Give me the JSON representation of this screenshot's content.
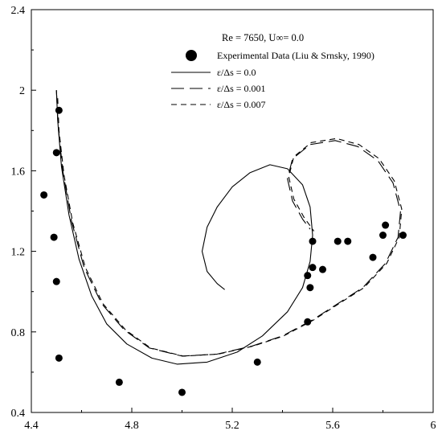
{
  "chart_data": {
    "type": "scatter",
    "title": "Re = 7650, U∞= 0.0",
    "xlabel": "",
    "ylabel": "",
    "xlim": [
      4.4,
      6.0
    ],
    "ylim": [
      0.4,
      2.4
    ],
    "xticks": [
      "4.4",
      "4.8",
      "5.2",
      "5.6",
      "6"
    ],
    "yticks": [
      "0.4",
      "0.8",
      "1.2",
      "1.6",
      "2",
      "2.4"
    ],
    "grid": false,
    "legend_position": "top-right",
    "series": [
      {
        "name": "Experimental Data (Liu & Srnsky, 1990)",
        "kind": "scatter",
        "color": "#000000",
        "points": [
          [
            4.51,
            1.9
          ],
          [
            4.5,
            1.69
          ],
          [
            4.45,
            1.48
          ],
          [
            4.49,
            1.27
          ],
          [
            4.5,
            1.05
          ],
          [
            4.51,
            0.67
          ],
          [
            4.75,
            0.55
          ],
          [
            5.0,
            0.5
          ],
          [
            5.3,
            0.65
          ],
          [
            5.5,
            0.85
          ],
          [
            5.5,
            1.08
          ],
          [
            5.51,
            1.02
          ],
          [
            5.52,
            1.12
          ],
          [
            5.56,
            1.11
          ],
          [
            5.52,
            1.25
          ],
          [
            5.62,
            1.25
          ],
          [
            5.66,
            1.25
          ],
          [
            5.76,
            1.17
          ],
          [
            5.8,
            1.28
          ],
          [
            5.81,
            1.33
          ],
          [
            5.88,
            1.28
          ]
        ]
      },
      {
        "name": "ε/Δs = 0.0",
        "kind": "line",
        "dash": "solid",
        "points": [
          [
            4.5,
            2.0
          ],
          [
            4.505,
            1.85
          ],
          [
            4.52,
            1.62
          ],
          [
            4.55,
            1.38
          ],
          [
            4.59,
            1.16
          ],
          [
            4.64,
            0.98
          ],
          [
            4.7,
            0.84
          ],
          [
            4.78,
            0.74
          ],
          [
            4.88,
            0.67
          ],
          [
            4.98,
            0.64
          ],
          [
            5.1,
            0.65
          ],
          [
            5.22,
            0.7
          ],
          [
            5.32,
            0.78
          ],
          [
            5.42,
            0.9
          ],
          [
            5.48,
            1.02
          ],
          [
            5.51,
            1.15
          ],
          [
            5.52,
            1.28
          ],
          [
            5.51,
            1.42
          ],
          [
            5.48,
            1.53
          ],
          [
            5.42,
            1.61
          ],
          [
            5.35,
            1.63
          ],
          [
            5.27,
            1.59
          ],
          [
            5.2,
            1.52
          ],
          [
            5.14,
            1.42
          ],
          [
            5.1,
            1.32
          ],
          [
            5.08,
            1.2
          ],
          [
            5.1,
            1.1
          ],
          [
            5.14,
            1.04
          ],
          [
            5.17,
            1.01
          ]
        ]
      },
      {
        "name": "ε/Δs = 0.001",
        "kind": "line",
        "dash": "long",
        "points": [
          [
            4.5,
            2.0
          ],
          [
            4.507,
            1.82
          ],
          [
            4.525,
            1.6
          ],
          [
            4.56,
            1.35
          ],
          [
            4.61,
            1.12
          ],
          [
            4.68,
            0.94
          ],
          [
            4.77,
            0.81
          ],
          [
            4.87,
            0.72
          ],
          [
            5.0,
            0.68
          ],
          [
            5.14,
            0.69
          ],
          [
            5.28,
            0.73
          ],
          [
            5.4,
            0.78
          ],
          [
            5.52,
            0.86
          ],
          [
            5.62,
            0.94
          ],
          [
            5.72,
            1.02
          ],
          [
            5.81,
            1.14
          ],
          [
            5.86,
            1.27
          ],
          [
            5.87,
            1.4
          ],
          [
            5.84,
            1.54
          ],
          [
            5.78,
            1.65
          ],
          [
            5.7,
            1.72
          ],
          [
            5.61,
            1.75
          ],
          [
            5.51,
            1.73
          ],
          [
            5.44,
            1.66
          ],
          [
            5.42,
            1.56
          ],
          [
            5.44,
            1.45
          ],
          [
            5.48,
            1.36
          ],
          [
            5.51,
            1.31
          ]
        ]
      },
      {
        "name": "ε/Δs = 0.007",
        "kind": "line",
        "dash": "short",
        "points": [
          [
            4.505,
            1.96
          ],
          [
            4.51,
            1.8
          ],
          [
            4.53,
            1.58
          ],
          [
            4.565,
            1.34
          ],
          [
            4.615,
            1.12
          ],
          [
            4.685,
            0.94
          ],
          [
            4.775,
            0.81
          ],
          [
            4.875,
            0.72
          ],
          [
            5.005,
            0.68
          ],
          [
            5.145,
            0.69
          ],
          [
            5.285,
            0.73
          ],
          [
            5.405,
            0.78
          ],
          [
            5.525,
            0.86
          ],
          [
            5.625,
            0.94
          ],
          [
            5.725,
            1.02
          ],
          [
            5.815,
            1.14
          ],
          [
            5.865,
            1.27
          ],
          [
            5.875,
            1.41
          ],
          [
            5.845,
            1.55
          ],
          [
            5.785,
            1.66
          ],
          [
            5.705,
            1.73
          ],
          [
            5.615,
            1.76
          ],
          [
            5.515,
            1.74
          ],
          [
            5.445,
            1.67
          ],
          [
            5.425,
            1.57
          ],
          [
            5.445,
            1.46
          ],
          [
            5.485,
            1.37
          ],
          [
            5.525,
            1.3
          ]
        ]
      }
    ]
  }
}
